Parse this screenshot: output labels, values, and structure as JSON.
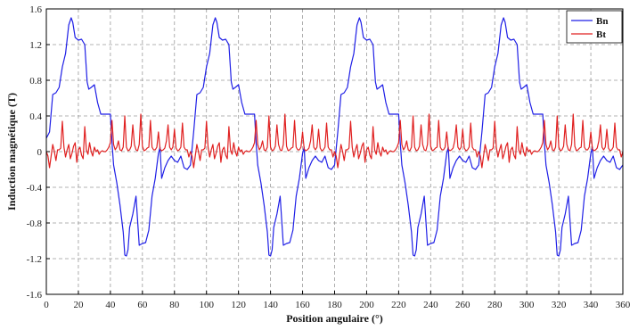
{
  "chart_data": {
    "type": "line",
    "xlabel": "Position angulaire (°)",
    "ylabel": "Induction magnétique (T)",
    "xlim": [
      0,
      360
    ],
    "ylim": [
      -1.6,
      1.6
    ],
    "xticks": [
      0,
      20,
      40,
      60,
      80,
      100,
      120,
      140,
      160,
      180,
      200,
      220,
      240,
      260,
      280,
      300,
      320,
      340,
      360
    ],
    "xtick_labels": [
      "0",
      "20",
      "40",
      "60",
      "80",
      "100",
      "120",
      "140",
      "160",
      "180",
      "200",
      "220",
      "240",
      "260",
      "280",
      "300",
      "320",
      "340",
      "360"
    ],
    "yticks": [
      -1.6,
      -1.2,
      -0.8,
      -0.4,
      0,
      0.4,
      0.8,
      1.2,
      1.6
    ],
    "ytick_labels": [
      "-1.6",
      "-1.2",
      "-0.8",
      "-0.4",
      "0",
      "0.4",
      "0.8",
      "1.2",
      "1.6"
    ],
    "grid": true,
    "legend_position": "top-right",
    "period_deg": 90,
    "series": [
      {
        "name": "Bn",
        "color": "#1f1fe6",
        "x": [
          0,
          2,
          4,
          6,
          8,
          10,
          12,
          14,
          15.5,
          16.5,
          18,
          20,
          22,
          24,
          25.5,
          26.5,
          28,
          30,
          32,
          34,
          36,
          38,
          40,
          41,
          42,
          44,
          46,
          48,
          49,
          50,
          51,
          52,
          54,
          56,
          58,
          60,
          62,
          64,
          66,
          68,
          70,
          71,
          72,
          74,
          76,
          78,
          80,
          82,
          84,
          86,
          88,
          90
        ],
        "y": [
          0.15,
          0.22,
          0.64,
          0.66,
          0.72,
          0.95,
          1.1,
          1.42,
          1.5,
          1.45,
          1.28,
          1.25,
          1.26,
          1.2,
          0.78,
          0.7,
          0.72,
          0.75,
          0.55,
          0.42,
          0.42,
          0.42,
          0.42,
          0.1,
          -0.15,
          -0.35,
          -0.6,
          -0.9,
          -1.16,
          -1.17,
          -1.1,
          -0.85,
          -0.7,
          -0.5,
          -1.05,
          -1.03,
          -1.02,
          -0.88,
          -0.5,
          -0.3,
          -0.02,
          0.05,
          -0.3,
          -0.18,
          -0.1,
          -0.05,
          -0.1,
          -0.12,
          -0.05,
          -0.18,
          -0.2,
          -0.15
        ]
      },
      {
        "name": "Bt",
        "color": "#e02020",
        "x": [
          0,
          1,
          2,
          3,
          4,
          5,
          6,
          7,
          8,
          9,
          10,
          11,
          12,
          13,
          14,
          15,
          16,
          17,
          18,
          19,
          20,
          21,
          22,
          23,
          24,
          25,
          26,
          27,
          28,
          29,
          30,
          31,
          32,
          33,
          34,
          35,
          36,
          37,
          38,
          39,
          40,
          41,
          42,
          43,
          44,
          45,
          46,
          47,
          48,
          49,
          50,
          51,
          52,
          53,
          54,
          55,
          56,
          57,
          58,
          59,
          60,
          61,
          62,
          63,
          64,
          65,
          66,
          67,
          68,
          69,
          70,
          71,
          72,
          73,
          74,
          75,
          76,
          77,
          78,
          79,
          80,
          81,
          82,
          83,
          84,
          85,
          86,
          87,
          88,
          89,
          90
        ],
        "y": [
          0,
          -0.05,
          -0.18,
          -0.05,
          0.08,
          0,
          -0.1,
          0.02,
          0.02,
          0.04,
          0.34,
          0.05,
          -0.06,
          0.02,
          0.08,
          -0.08,
          -0.02,
          0.06,
          0.1,
          -0.12,
          0.02,
          0.05,
          -0.04,
          -0.08,
          0.28,
          0.02,
          -0.03,
          0.1,
          0,
          -0.05,
          0.05,
          0,
          0.02,
          -0.03,
          0,
          0.01,
          0,
          0,
          0.02,
          0.05,
          0.1,
          0.35,
          0.08,
          0.02,
          0.05,
          0.12,
          0.02,
          0.01,
          0.05,
          0.4,
          0.05,
          0.01,
          0.02,
          0.06,
          0.3,
          0.08,
          0.02,
          0.01,
          0.08,
          0.42,
          0.06,
          0.01,
          0.02,
          0.04,
          0.05,
          0.35,
          0.05,
          0.02,
          0.02,
          0.05,
          0.22,
          0.03,
          0.01,
          0.02,
          0.04,
          0.12,
          0.3,
          0.05,
          0.02,
          0.05,
          0.25,
          0.04,
          0.01,
          0.02,
          0.05,
          0.32,
          0.05,
          0.02,
          0.02,
          -0.06,
          0
        ]
      }
    ]
  }
}
